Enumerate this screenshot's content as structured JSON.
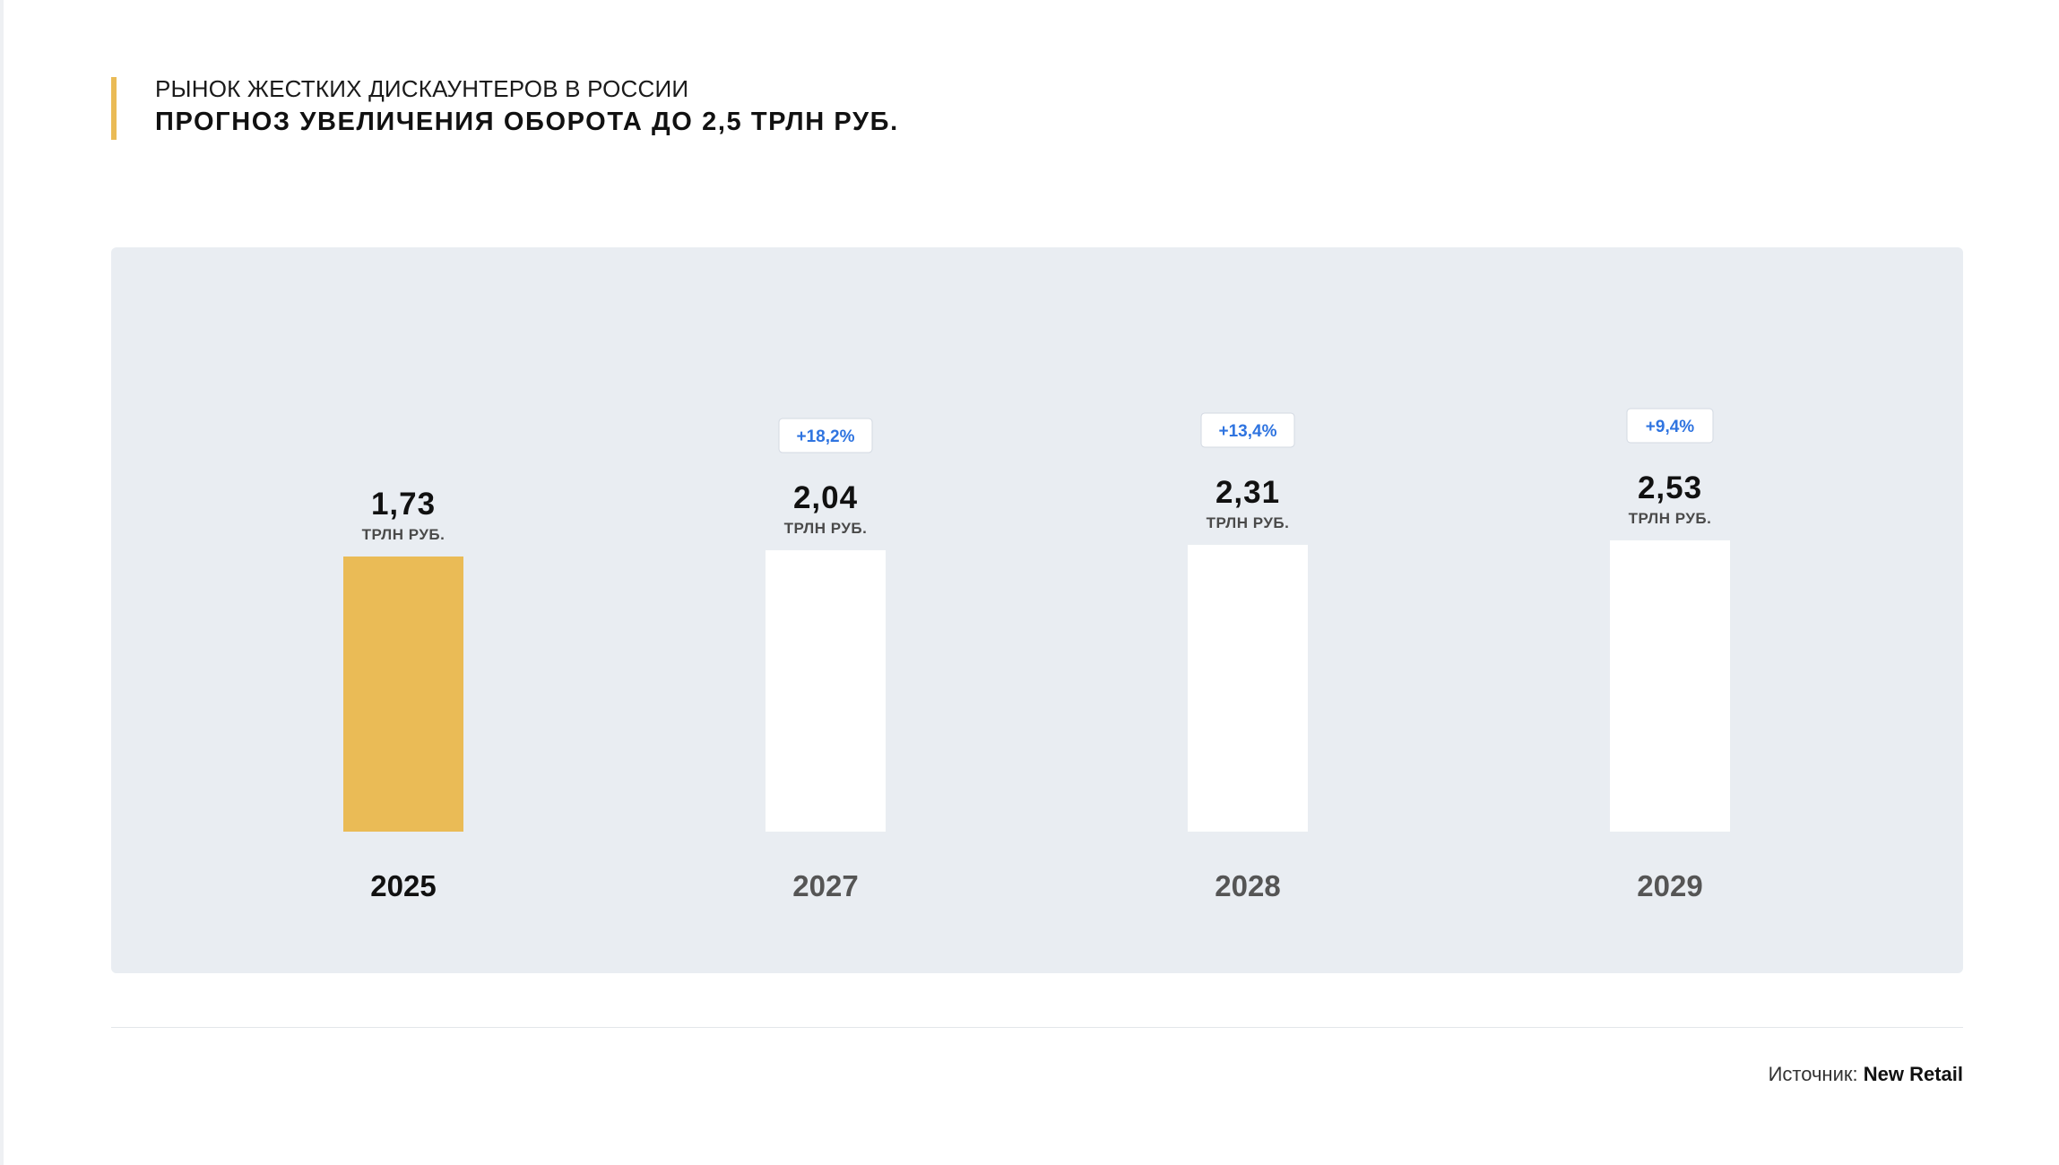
{
  "header": {
    "subtitle": "РЫНОК ЖЕСТКИХ ДИСКАУНТЕРОВ В РОССИИ",
    "title": "ПРОГНОЗ УВЕЛИЧЕНИЯ ОБОРОТА ДО 2,5 ТРЛН РУБ."
  },
  "footer": {
    "source_label": "Источник:",
    "source_name": "New Retail"
  },
  "colors": {
    "highlight_bar": "#eabb56",
    "forecast_bar": "#ffffff",
    "panel_background": "#e9edf2",
    "growth_text": "#2f74e0",
    "accent_line": "#eabb56"
  },
  "chart_data": {
    "type": "bar",
    "title": "ПРОГНОЗ УВЕЛИЧЕНИЯ ОБОРОТА ДО 2,5 ТРЛН РУБ.",
    "categories": [
      "2025",
      "2027",
      "2028",
      "2029"
    ],
    "values": [
      1.73,
      2.04,
      2.31,
      2.53
    ],
    "value_labels": [
      "1,73",
      "2,04",
      "2,31",
      "2,53"
    ],
    "unit_label": "ТРЛН РУБ.",
    "growth_labels": [
      "",
      "+18,2%",
      "+13,4%",
      "+9,4%"
    ],
    "highlighted_category": "2025",
    "ylabel": "",
    "xlabel": "",
    "grid": false
  }
}
